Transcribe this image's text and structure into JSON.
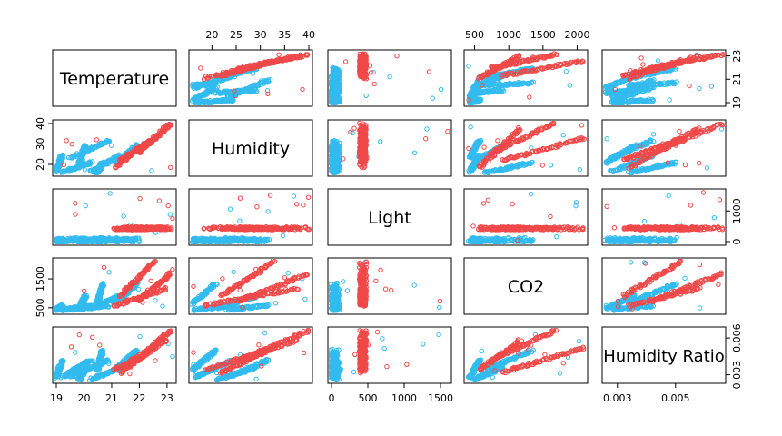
{
  "chart_data": {
    "type": "scatter",
    "variables": [
      "Temperature",
      "Humidity",
      "Light",
      "CO2",
      "Humidity Ratio"
    ],
    "colors": {
      "occupied": "#f04848",
      "unoccupied": "#33bbee"
    },
    "axes": [
      {
        "name": "Temperature",
        "range": [
          19,
          23.2
        ],
        "ticks": [
          "19",
          "20",
          "21",
          "22",
          "23"
        ],
        "side_ticks": [
          "19",
          "21",
          "23"
        ]
      },
      {
        "name": "Humidity",
        "range": [
          16,
          40
        ],
        "ticks": [
          "20",
          "25",
          "30",
          "35",
          "40"
        ],
        "side_ticks": [
          "20",
          "30",
          "40"
        ]
      },
      {
        "name": "Light",
        "range": [
          0,
          1600
        ],
        "ticks": [
          "0",
          "500",
          "1000",
          "1500"
        ],
        "side_ticks": [
          "0",
          "1000"
        ]
      },
      {
        "name": "CO2",
        "range": [
          400,
          2100
        ],
        "ticks": [
          "500",
          "1000",
          "1500",
          "2000"
        ],
        "side_ticks": [
          "500",
          "1500"
        ]
      },
      {
        "name": "Humidity Ratio",
        "range": [
          0.0026,
          0.0066
        ],
        "ticks": [
          "0.003",
          "0.005"
        ],
        "side_ticks": [
          "0.003",
          "0.006"
        ]
      }
    ],
    "variable_trends": [
      {
        "name": "Temperature",
        "unoccupied": [
          [
            0.0,
            0.05
          ],
          [
            0.2,
            0.25
          ],
          [
            0.35,
            0.4
          ],
          [
            0.12,
            0.45
          ],
          [
            0.3,
            0.55
          ],
          [
            0.5,
            0.7
          ],
          [
            0.05,
            0.3
          ]
        ],
        "occupied": [
          [
            0.5,
            0.95
          ],
          [
            0.7,
            0.98
          ],
          [
            0.55,
            0.85
          ]
        ]
      },
      {
        "name": "Humidity",
        "unoccupied": [
          [
            0.02,
            0.35
          ],
          [
            0.2,
            0.55
          ],
          [
            0.0,
            0.2
          ],
          [
            0.3,
            0.65
          ]
        ],
        "occupied": [
          [
            0.1,
            0.9
          ],
          [
            0.4,
            1.0
          ],
          [
            0.25,
            0.7
          ]
        ]
      },
      {
        "name": "Light",
        "unoccupied": [
          [
            0.0,
            0.06
          ]
        ],
        "occupied": [
          [
            0.24,
            0.3
          ]
        ]
      },
      {
        "name": "CO2",
        "unoccupied": [
          [
            0.02,
            0.1
          ],
          [
            0.05,
            0.3
          ],
          [
            0.15,
            0.55
          ]
        ],
        "occupied": [
          [
            0.1,
            0.45
          ],
          [
            0.2,
            0.75
          ],
          [
            0.3,
            1.0
          ]
        ]
      },
      {
        "name": "Humidity Ratio",
        "unoccupied": [
          [
            0.05,
            0.4
          ],
          [
            0.0,
            0.25
          ],
          [
            0.2,
            0.6
          ]
        ],
        "occupied": [
          [
            0.2,
            0.8
          ],
          [
            0.4,
            1.0
          ],
          [
            0.15,
            0.65
          ]
        ]
      }
    ]
  }
}
